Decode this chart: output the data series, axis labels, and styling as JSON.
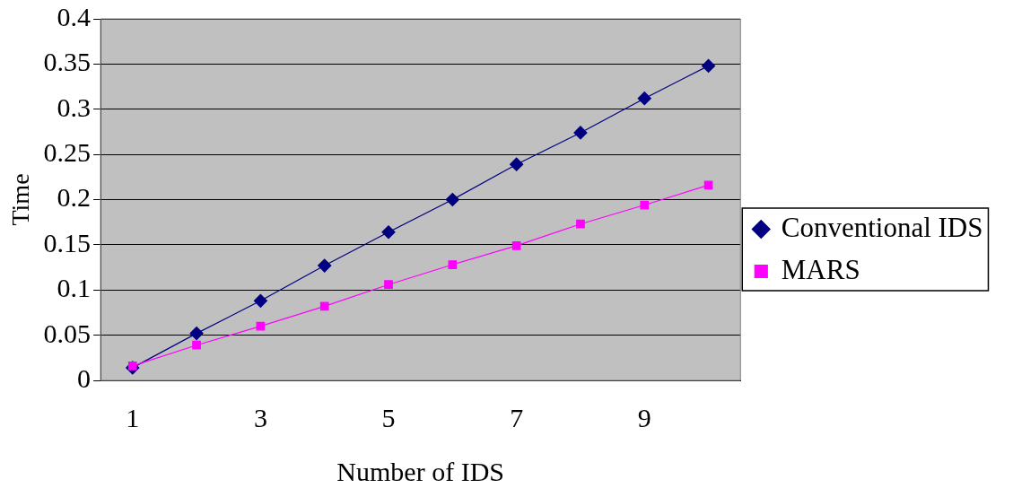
{
  "chart_data": {
    "type": "line",
    "xlabel": "Number of IDS",
    "ylabel": "Time",
    "categories": [
      "1",
      null,
      "3",
      null,
      "5",
      null,
      "7",
      null,
      "9",
      null
    ],
    "series": [
      {
        "name": "Conventional IDS",
        "color": "#000080",
        "marker": "diamond",
        "values": [
          0.014,
          0.052,
          0.088,
          0.127,
          0.164,
          0.2,
          0.239,
          0.274,
          0.312,
          0.348
        ]
      },
      {
        "name": "MARS",
        "color": "#ff00ff",
        "marker": "square",
        "values": [
          0.016,
          0.039,
          0.06,
          0.082,
          0.106,
          0.128,
          0.149,
          0.173,
          0.194,
          0.216
        ]
      }
    ],
    "ylim": [
      0,
      0.4
    ],
    "yticks": [
      0,
      0.05,
      0.1,
      0.15,
      0.2,
      0.25,
      0.3,
      0.35,
      0.4
    ],
    "grid": "y",
    "legend": "right"
  }
}
